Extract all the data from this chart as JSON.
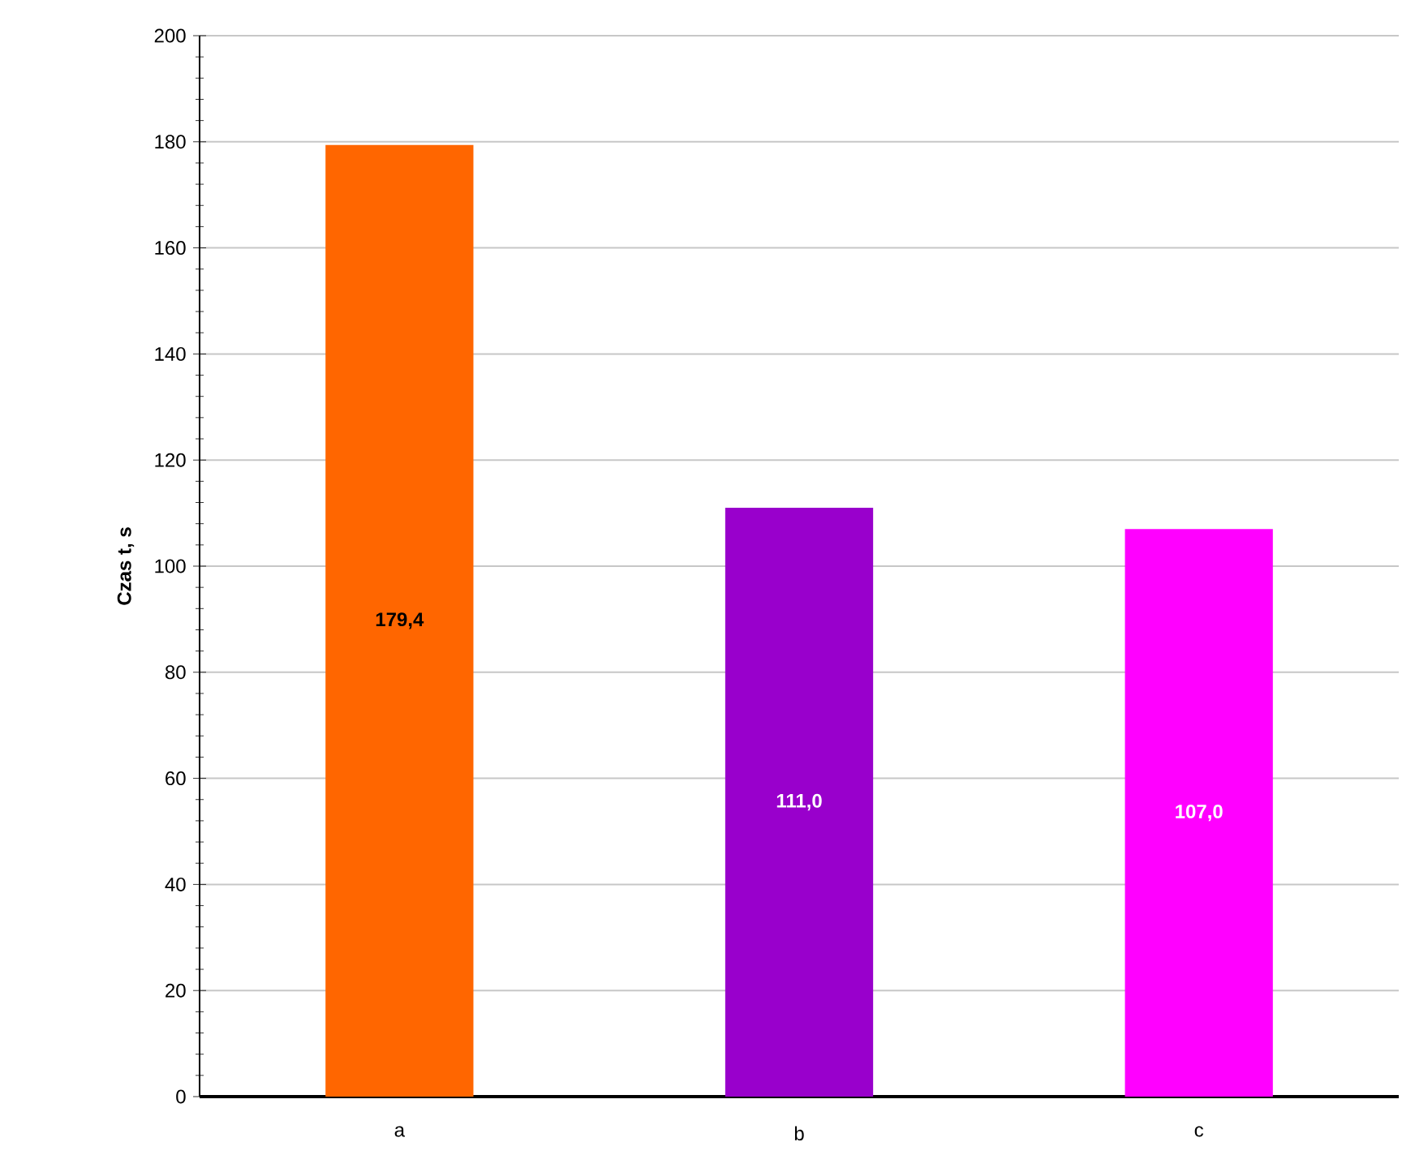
{
  "chart_data": {
    "type": "bar",
    "ylabel": "Czas t, s",
    "categories": [
      "a",
      "b",
      "c"
    ],
    "values": [
      179.4,
      111.0,
      107.0
    ],
    "value_labels": [
      "179,4",
      "111,0",
      "107,0"
    ],
    "colors": [
      "#ff6600",
      "#9900cc",
      "#ff00ff"
    ],
    "ylim": [
      0,
      200
    ],
    "yticks": [
      0,
      20,
      40,
      60,
      80,
      100,
      120,
      140,
      160,
      180,
      200
    ],
    "grid": "y"
  }
}
